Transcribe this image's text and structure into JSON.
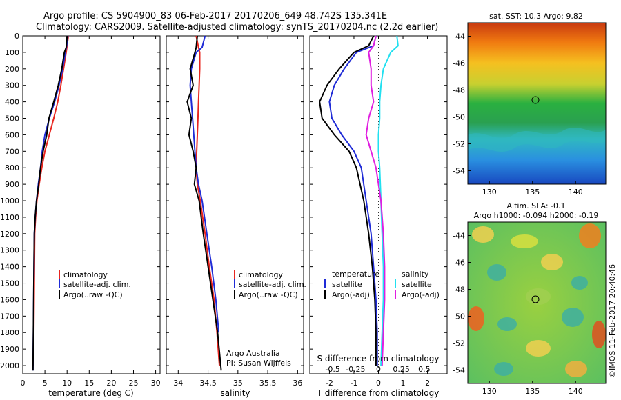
{
  "header": {
    "title_line1": "Argo profile: CS 5904900_83 06-Feb-2017 20170206_649 48.742S 135.341E",
    "title_line2": "Climatology: CARS2009. Satellite-adjusted climatology: synTS_20170204.nc (2.2d earlier)"
  },
  "colors": {
    "climatology": "#e8251e",
    "satellite": "#1f2bd6",
    "argo": "#000000",
    "sal_satellite": "#22e0f0",
    "sal_argo": "#e01ee0"
  },
  "chart_data": [
    {
      "type": "line",
      "panel": "temperature",
      "xlabel": "temperature (deg C)",
      "xlim": [
        0,
        31
      ],
      "xticks": [
        0,
        5,
        10,
        15,
        20,
        25,
        30
      ],
      "ylim": [
        2050,
        0
      ],
      "yticks": [
        0,
        100,
        200,
        300,
        400,
        500,
        600,
        700,
        800,
        900,
        1000,
        1100,
        1200,
        1300,
        1400,
        1500,
        1600,
        1700,
        1800,
        1900,
        2000
      ],
      "legend": [
        "climatology",
        "satellite-adj. clim.",
        "Argo(..raw -QC)"
      ],
      "series": [
        {
          "name": "climatology",
          "color": "#e8251e",
          "x": [
            10.3,
            10.0,
            9.8,
            9.2,
            8.6,
            7.9,
            7.0,
            6.0,
            5.0,
            4.3,
            3.7,
            3.2,
            2.9,
            2.7,
            2.6,
            2.5,
            2.5
          ],
          "y": [
            0,
            60,
            100,
            200,
            300,
            400,
            500,
            600,
            700,
            800,
            900,
            1000,
            1100,
            1200,
            1500,
            1800,
            2000
          ]
        },
        {
          "name": "satellite-adj. clim.",
          "color": "#1f2bd6",
          "x": [
            10.2,
            9.9,
            9.6,
            9.0,
            8.2,
            7.2,
            6.0,
            5.0,
            4.4,
            4.0,
            3.5,
            3.1,
            2.8,
            2.6,
            2.5,
            2.4,
            2.3
          ],
          "y": [
            0,
            60,
            100,
            200,
            300,
            400,
            500,
            600,
            700,
            800,
            900,
            1000,
            1100,
            1200,
            1500,
            1800,
            2030
          ]
        },
        {
          "name": "Argo(..raw -QC)",
          "color": "#000000",
          "x": [
            10.0,
            9.8,
            9.4,
            8.8,
            8.0,
            7.0,
            5.9,
            5.4,
            4.6,
            4.0,
            3.6,
            3.1,
            2.8,
            2.6,
            2.5,
            2.4,
            2.3
          ],
          "y": [
            0,
            70,
            100,
            200,
            300,
            400,
            500,
            600,
            700,
            800,
            900,
            1000,
            1100,
            1200,
            1500,
            1800,
            2030
          ]
        }
      ]
    },
    {
      "type": "line",
      "panel": "salinity",
      "xlabel": "salinity",
      "xlim": [
        33.8,
        36.1
      ],
      "xticks": [
        34,
        34.5,
        35,
        35.5,
        36
      ],
      "ylim": [
        2050,
        0
      ],
      "legend": [
        "climatology",
        "satellite-adj. clim.",
        "Argo(..raw -QC)"
      ],
      "annotation": [
        "Argo Australia",
        "PI: Susan Wijffels"
      ],
      "series": [
        {
          "name": "climatology",
          "color": "#e8251e",
          "x": [
            34.3,
            34.34,
            34.36,
            34.36,
            34.35,
            34.34,
            34.33,
            34.32,
            34.31,
            34.3,
            34.32,
            34.37,
            34.45,
            34.52,
            34.6,
            34.65,
            34.69
          ],
          "y": [
            0,
            70,
            100,
            200,
            300,
            400,
            500,
            600,
            700,
            800,
            900,
            1000,
            1200,
            1400,
            1600,
            1800,
            2000
          ]
        },
        {
          "name": "satellite-adj. clim.",
          "color": "#1f2bd6",
          "x": [
            34.45,
            34.4,
            34.3,
            34.22,
            34.2,
            34.22,
            34.24,
            34.26,
            34.28,
            34.3,
            34.34,
            34.4,
            34.48,
            34.56,
            34.63,
            34.68
          ],
          "y": [
            0,
            70,
            100,
            200,
            300,
            400,
            500,
            600,
            700,
            800,
            900,
            1000,
            1200,
            1400,
            1600,
            1800
          ]
        },
        {
          "name": "Argo(..raw -QC)",
          "color": "#000000",
          "x": [
            34.32,
            34.3,
            34.28,
            34.2,
            34.25,
            34.15,
            34.22,
            34.18,
            34.25,
            34.3,
            34.27,
            34.35,
            34.42,
            34.5,
            34.58,
            34.66,
            34.72
          ],
          "y": [
            0,
            70,
            100,
            200,
            300,
            400,
            500,
            600,
            700,
            800,
            900,
            1000,
            1200,
            1400,
            1600,
            1800,
            2030
          ]
        }
      ]
    },
    {
      "type": "line",
      "panel": "difference",
      "xlabel": "T difference from climatology",
      "xlabel_top": "S difference from climatology",
      "xlim": [
        -2.8,
        2.8
      ],
      "xticks": [
        -2,
        -1,
        0,
        1,
        2
      ],
      "xticks_top": [
        -0.5,
        -0.25,
        0,
        0.25,
        0.5
      ],
      "ylim": [
        2050,
        0
      ],
      "legend_headers": [
        "temperature",
        "salinity"
      ],
      "legend": [
        "satellite",
        "Argo(-adj)",
        "satellite",
        "Argo(-adj)"
      ],
      "series": [
        {
          "name": "satellite",
          "color": "#1f2bd6",
          "x": [
            -0.1,
            -0.2,
            -0.9,
            -1.4,
            -1.8,
            -2.0,
            -1.9,
            -1.5,
            -1.0,
            -0.7,
            -0.5,
            -0.3,
            -0.2,
            -0.1,
            -0.05,
            -0.05
          ],
          "y": [
            0,
            60,
            100,
            200,
            300,
            400,
            500,
            600,
            700,
            800,
            1000,
            1200,
            1400,
            1600,
            1800,
            2000
          ]
        },
        {
          "name": "Argo(-adj)",
          "color": "#000000",
          "x": [
            -0.2,
            -0.4,
            -1.0,
            -1.6,
            -2.1,
            -2.4,
            -2.3,
            -1.8,
            -1.2,
            -0.9,
            -0.6,
            -0.4,
            -0.25,
            -0.15,
            -0.1,
            -0.1
          ],
          "y": [
            0,
            60,
            100,
            200,
            300,
            400,
            500,
            600,
            700,
            800,
            1000,
            1200,
            1400,
            1600,
            1800,
            2000
          ]
        },
        {
          "name": "satellite",
          "color": "#22e0f0",
          "x": [
            0.75,
            0.8,
            0.5,
            0.2,
            0.1,
            0.05,
            0.05,
            0.0,
            0.0,
            0.05,
            0.1,
            0.15,
            0.2,
            0.2,
            0.15,
            0.1
          ],
          "y": [
            0,
            60,
            100,
            200,
            300,
            400,
            500,
            600,
            700,
            800,
            1000,
            1200,
            1400,
            1600,
            1800,
            2000
          ]
        },
        {
          "name": "Argo(-adj)",
          "color": "#e01ee0",
          "x": [
            -0.1,
            -0.2,
            -0.4,
            -0.3,
            -0.3,
            -0.2,
            -0.4,
            -0.5,
            -0.3,
            -0.1,
            0.1,
            0.2,
            0.25,
            0.25,
            0.2,
            0.15
          ],
          "y": [
            0,
            60,
            100,
            200,
            300,
            400,
            500,
            600,
            700,
            800,
            1000,
            1200,
            1400,
            1600,
            1800,
            2000
          ]
        }
      ]
    },
    {
      "type": "heatmap",
      "panel": "sst-map",
      "title": "sat. SST: 10.3 Argo: 9.82",
      "xticks": [
        130,
        135,
        140
      ],
      "yticks": [
        -44,
        -46,
        -48,
        -50,
        -52,
        -54
      ],
      "xlim": [
        127.5,
        143.5
      ],
      "ylim": [
        -55,
        -43
      ],
      "marker": {
        "lon": 135.341,
        "lat": -48.742
      }
    },
    {
      "type": "heatmap",
      "panel": "sla-map",
      "title_line1": "Altim. SLA: -0.1",
      "title_line2": "Argo h1000: -0.094 h2000: -0.19",
      "side_label": "©IMOS 11-Feb-2017 20:40:46",
      "xticks": [
        130,
        135,
        140
      ],
      "yticks": [
        -44,
        -46,
        -48,
        -50,
        -52,
        -54
      ],
      "xlim": [
        127.5,
        143.5
      ],
      "ylim": [
        -55,
        -43
      ],
      "marker": {
        "lon": 135.341,
        "lat": -48.742
      }
    }
  ]
}
